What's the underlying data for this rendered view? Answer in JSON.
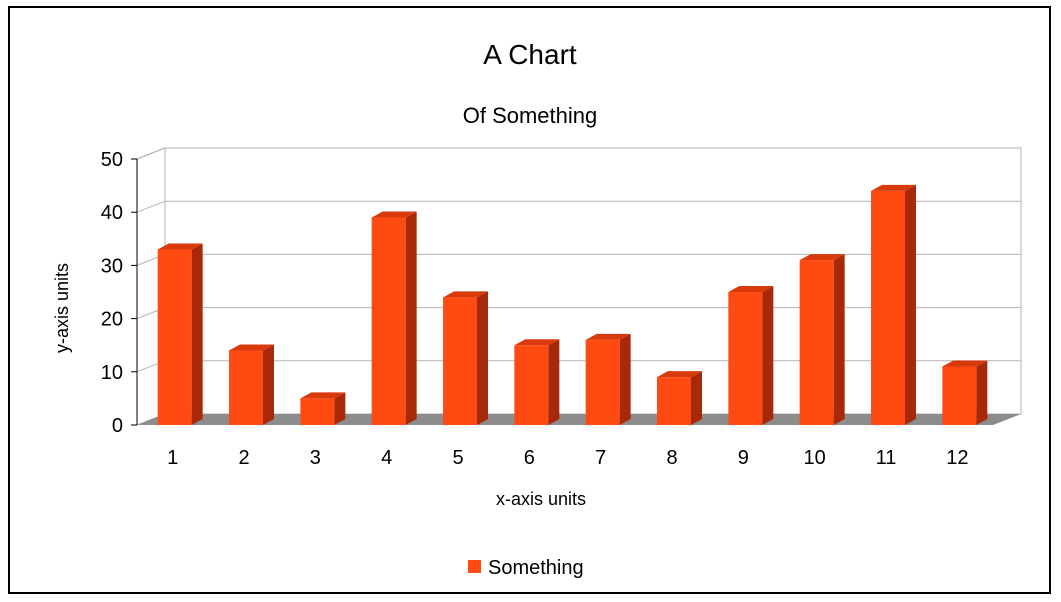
{
  "chart_data": {
    "type": "bar",
    "title": "A Chart",
    "subtitle": "Of Something",
    "xlabel": "x-axis units",
    "ylabel": "y-axis units",
    "categories": [
      "1",
      "2",
      "3",
      "4",
      "5",
      "6",
      "7",
      "8",
      "9",
      "10",
      "11",
      "12"
    ],
    "series": [
      {
        "name": "Something",
        "values": [
          33,
          14,
          5,
          39,
          24,
          15,
          16,
          9,
          25,
          31,
          44,
          11
        ]
      }
    ],
    "ylim": [
      0,
      50
    ],
    "yticks": [
      "0",
      "10",
      "20",
      "30",
      "40",
      "50"
    ],
    "grid": true,
    "legend": "bottom",
    "style": "3d",
    "colors": {
      "bar_front": "#ff4a12",
      "bar_side": "#a8290a",
      "bar_top": "#d93a0c",
      "floor": "#8c8c8c",
      "grid": "#b3b3b3"
    }
  }
}
